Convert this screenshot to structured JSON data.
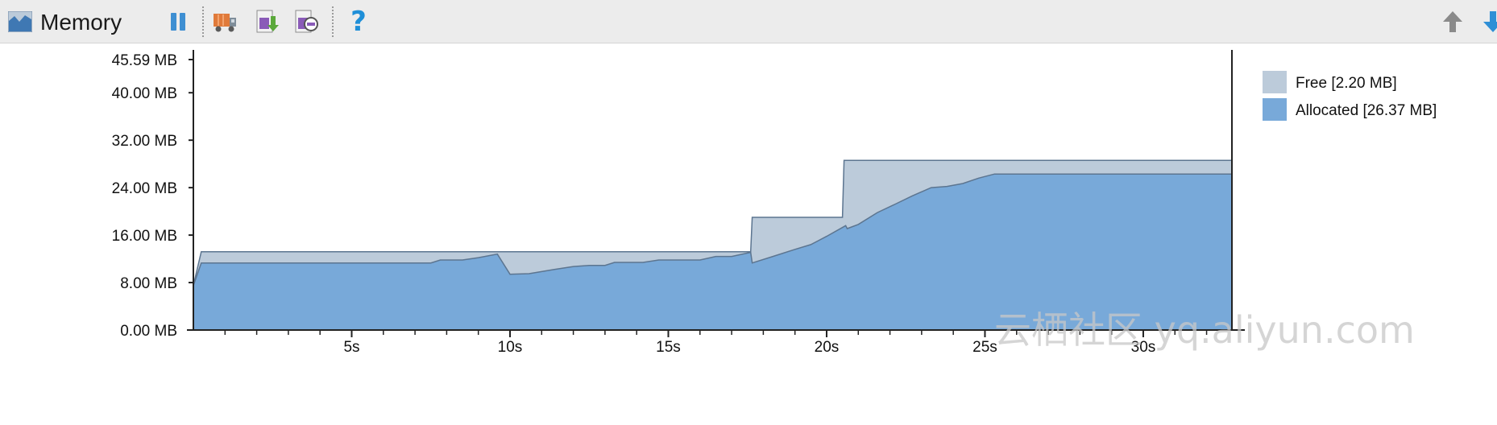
{
  "panel": {
    "title": "Memory",
    "icon": "memory-chart-icon"
  },
  "toolbar": {
    "buttons": [
      {
        "name": "pause-button",
        "icon": "pause-icon"
      },
      {
        "name": "initiate-gc-button",
        "icon": "garbage-truck-icon"
      },
      {
        "name": "dump-java-heap-button",
        "icon": "heap-dump-icon"
      },
      {
        "name": "start-allocation-tracking-button",
        "icon": "allocation-tracking-icon"
      },
      {
        "name": "help-button",
        "icon": "help-icon",
        "glyph": "?"
      },
      {
        "name": "scroll-up-button",
        "icon": "arrow-up-icon"
      },
      {
        "name": "scroll-down-button",
        "icon": "arrow-down-icon"
      }
    ]
  },
  "colors": {
    "free": "#bccbda",
    "allocated": "#78a9d9",
    "outline": "#5c7590",
    "accent_help": "#1f8fd8"
  },
  "watermark": "云栖社区 yq.aliyun.com",
  "chart_data": {
    "type": "area",
    "title": "",
    "xlabel": "",
    "ylabel": "",
    "y_unit": "MB",
    "ylim": [
      0,
      45.59
    ],
    "xlim": [
      0,
      32.8
    ],
    "y_ticks": [
      {
        "value": 0,
        "label": "0.00 MB"
      },
      {
        "value": 8,
        "label": "8.00 MB"
      },
      {
        "value": 16,
        "label": "16.00 MB"
      },
      {
        "value": 24,
        "label": "24.00 MB"
      },
      {
        "value": 32,
        "label": "32.00 MB"
      },
      {
        "value": 40,
        "label": "40.00 MB"
      },
      {
        "value": 45.59,
        "label": "45.59 MB"
      }
    ],
    "x_ticks": [
      {
        "value": 5,
        "label": "5s"
      },
      {
        "value": 10,
        "label": "10s"
      },
      {
        "value": 15,
        "label": "15s"
      },
      {
        "value": 20,
        "label": "20s"
      },
      {
        "value": 25,
        "label": "25s"
      },
      {
        "value": 30,
        "label": "30s"
      }
    ],
    "x_minor_ticks": [
      1,
      2,
      3,
      4,
      6,
      7,
      8,
      9,
      11,
      12,
      13,
      14,
      16,
      17,
      18,
      19,
      21,
      22,
      23,
      24,
      26,
      27,
      28,
      29,
      31,
      32
    ],
    "legend_position": "top-right",
    "legend": [
      {
        "key": "free",
        "label": "Free [2.20 MB]"
      },
      {
        "key": "allocated",
        "label": "Allocated [26.37 MB]"
      }
    ],
    "series": [
      {
        "key": "total",
        "name": "Free [2.20 MB]",
        "points": [
          [
            0,
            7.5
          ],
          [
            0.25,
            13.2
          ],
          [
            17.6,
            13.2
          ],
          [
            17.65,
            19.0
          ],
          [
            20.5,
            19.0
          ],
          [
            20.55,
            28.6
          ],
          [
            32.8,
            28.6
          ]
        ]
      },
      {
        "key": "allocated",
        "name": "Allocated [26.37 MB]",
        "points": [
          [
            0,
            7.5
          ],
          [
            0.25,
            11.3
          ],
          [
            7.5,
            11.3
          ],
          [
            7.8,
            11.8
          ],
          [
            8.5,
            11.8
          ],
          [
            9.0,
            12.2
          ],
          [
            9.6,
            12.8
          ],
          [
            10.0,
            9.4
          ],
          [
            10.6,
            9.5
          ],
          [
            11.4,
            10.2
          ],
          [
            12.0,
            10.7
          ],
          [
            12.5,
            10.9
          ],
          [
            13.0,
            10.9
          ],
          [
            13.3,
            11.4
          ],
          [
            14.2,
            11.4
          ],
          [
            14.7,
            11.8
          ],
          [
            16.0,
            11.8
          ],
          [
            16.5,
            12.4
          ],
          [
            17.0,
            12.4
          ],
          [
            17.6,
            13.1
          ],
          [
            17.65,
            11.3
          ],
          [
            18.3,
            12.4
          ],
          [
            19.0,
            13.6
          ],
          [
            19.5,
            14.4
          ],
          [
            20.0,
            15.8
          ],
          [
            20.6,
            17.6
          ],
          [
            20.65,
            17.1
          ],
          [
            21.0,
            17.8
          ],
          [
            21.6,
            19.8
          ],
          [
            22.2,
            21.3
          ],
          [
            22.7,
            22.6
          ],
          [
            23.3,
            24.0
          ],
          [
            23.8,
            24.2
          ],
          [
            24.3,
            24.7
          ],
          [
            24.8,
            25.6
          ],
          [
            25.3,
            26.3
          ],
          [
            32.8,
            26.3
          ]
        ]
      }
    ]
  }
}
